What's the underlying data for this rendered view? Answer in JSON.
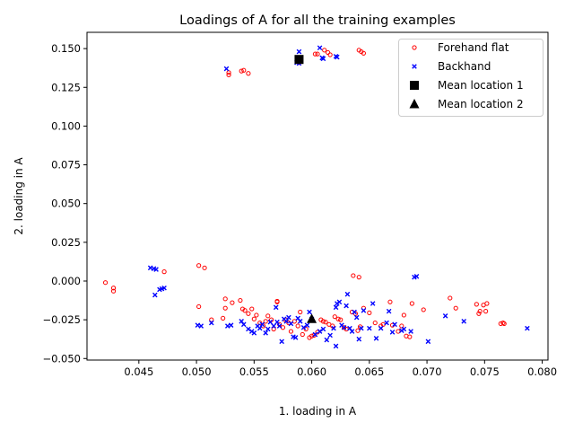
{
  "chart_data": {
    "type": "scatter",
    "title": "Loadings of A for all the training examples",
    "xlabel": "1. loading in A",
    "ylabel": "2. loading in A",
    "xlim": [
      0.0405,
      0.0805
    ],
    "ylim": [
      -0.051,
      0.1605
    ],
    "xticks": [
      0.045,
      0.05,
      0.055,
      0.06,
      0.065,
      0.07,
      0.075,
      0.08
    ],
    "xtick_labels": [
      "0.045",
      "0.050",
      "0.055",
      "0.060",
      "0.065",
      "0.070",
      "0.075",
      "0.080"
    ],
    "yticks": [
      -0.05,
      -0.025,
      0.0,
      0.025,
      0.05,
      0.075,
      0.1,
      0.125,
      0.15
    ],
    "ytick_labels": [
      "−0.050",
      "−0.025",
      "0.000",
      "0.025",
      "0.050",
      "0.075",
      "0.100",
      "0.125",
      "0.150"
    ],
    "grid": false,
    "legend_position": "top-right",
    "series": [
      {
        "name": "Forehand flat",
        "marker": "circle-open",
        "color": "#ff0000",
        "points": [
          [
            0.0421,
            -0.001
          ],
          [
            0.0428,
            -0.0045
          ],
          [
            0.0428,
            -0.0065
          ],
          [
            0.0472,
            0.006
          ],
          [
            0.0502,
            0.01
          ],
          [
            0.0507,
            0.0085
          ],
          [
            0.0502,
            -0.0165
          ],
          [
            0.0513,
            -0.025
          ],
          [
            0.0523,
            -0.024
          ],
          [
            0.0525,
            -0.0115
          ],
          [
            0.0525,
            -0.0175
          ],
          [
            0.0531,
            -0.014
          ],
          [
            0.0538,
            -0.0125
          ],
          [
            0.054,
            -0.018
          ],
          [
            0.0542,
            -0.019
          ],
          [
            0.0545,
            -0.021
          ],
          [
            0.0548,
            -0.018
          ],
          [
            0.055,
            -0.0245
          ],
          [
            0.0552,
            -0.022
          ],
          [
            0.0555,
            -0.027
          ],
          [
            0.0558,
            -0.029
          ],
          [
            0.056,
            -0.026
          ],
          [
            0.0562,
            -0.0225
          ],
          [
            0.0565,
            -0.025
          ],
          [
            0.0567,
            -0.031
          ],
          [
            0.057,
            -0.013
          ],
          [
            0.057,
            -0.0135
          ],
          [
            0.0572,
            -0.028
          ],
          [
            0.0575,
            -0.03
          ],
          [
            0.0577,
            -0.025
          ],
          [
            0.058,
            -0.027
          ],
          [
            0.0582,
            -0.0325
          ],
          [
            0.0585,
            -0.026
          ],
          [
            0.0588,
            -0.029
          ],
          [
            0.059,
            -0.02
          ],
          [
            0.0592,
            -0.0345
          ],
          [
            0.0595,
            -0.031
          ],
          [
            0.0598,
            -0.0365
          ],
          [
            0.06,
            -0.0355
          ],
          [
            0.0602,
            -0.035
          ],
          [
            0.0605,
            -0.033
          ],
          [
            0.0608,
            -0.025
          ],
          [
            0.061,
            -0.026
          ],
          [
            0.0612,
            -0.0265
          ],
          [
            0.0615,
            -0.028
          ],
          [
            0.0618,
            -0.029
          ],
          [
            0.062,
            -0.023
          ],
          [
            0.0623,
            -0.0245
          ],
          [
            0.0625,
            -0.025
          ],
          [
            0.0628,
            -0.03
          ],
          [
            0.063,
            -0.031
          ],
          [
            0.0635,
            -0.02
          ],
          [
            0.0638,
            -0.021
          ],
          [
            0.064,
            -0.032
          ],
          [
            0.0642,
            -0.0295
          ],
          [
            0.0645,
            -0.0175
          ],
          [
            0.0636,
            0.0035
          ],
          [
            0.0641,
            0.0025
          ],
          [
            0.065,
            -0.0205
          ],
          [
            0.0655,
            -0.027
          ],
          [
            0.066,
            -0.029
          ],
          [
            0.0662,
            -0.028
          ],
          [
            0.0668,
            -0.0135
          ],
          [
            0.067,
            -0.0285
          ],
          [
            0.0675,
            -0.0325
          ],
          [
            0.0678,
            -0.029
          ],
          [
            0.068,
            -0.022
          ],
          [
            0.0682,
            -0.0355
          ],
          [
            0.0685,
            -0.036
          ],
          [
            0.0687,
            -0.0145
          ],
          [
            0.0697,
            -0.0185
          ],
          [
            0.072,
            -0.011
          ],
          [
            0.0725,
            -0.0175
          ],
          [
            0.0743,
            -0.015
          ],
          [
            0.0745,
            -0.021
          ],
          [
            0.0746,
            -0.0195
          ],
          [
            0.0749,
            -0.0155
          ],
          [
            0.0751,
            -0.0195
          ],
          [
            0.0752,
            -0.0145
          ],
          [
            0.0764,
            -0.0275
          ],
          [
            0.0766,
            -0.027
          ],
          [
            0.0767,
            -0.0275
          ],
          [
            0.0528,
            0.1345
          ],
          [
            0.0528,
            0.133
          ],
          [
            0.0541,
            0.136
          ],
          [
            0.0539,
            0.1355
          ],
          [
            0.0545,
            0.134
          ],
          [
            0.0603,
            0.1465
          ],
          [
            0.0605,
            0.1465
          ],
          [
            0.0611,
            0.149
          ],
          [
            0.0614,
            0.1475
          ],
          [
            0.0616,
            0.146
          ],
          [
            0.0641,
            0.149
          ],
          [
            0.0643,
            0.148
          ],
          [
            0.0645,
            0.147
          ],
          [
            0.0589,
            0.141
          ]
        ]
      },
      {
        "name": "Backhand",
        "marker": "x",
        "color": "#0000ff",
        "points": [
          [
            0.046,
            0.0085
          ],
          [
            0.0463,
            0.008
          ],
          [
            0.0465,
            0.0075
          ],
          [
            0.0464,
            -0.009
          ],
          [
            0.0468,
            -0.0055
          ],
          [
            0.047,
            -0.005
          ],
          [
            0.0472,
            -0.0045
          ],
          [
            0.0501,
            -0.0285
          ],
          [
            0.0504,
            -0.029
          ],
          [
            0.0513,
            -0.027
          ],
          [
            0.0527,
            -0.029
          ],
          [
            0.053,
            -0.0285
          ],
          [
            0.0539,
            -0.026
          ],
          [
            0.0541,
            -0.028
          ],
          [
            0.0545,
            -0.031
          ],
          [
            0.0548,
            -0.0325
          ],
          [
            0.055,
            -0.0335
          ],
          [
            0.0553,
            -0.029
          ],
          [
            0.0555,
            -0.0305
          ],
          [
            0.0557,
            -0.028
          ],
          [
            0.056,
            -0.0335
          ],
          [
            0.0562,
            -0.031
          ],
          [
            0.0564,
            -0.0265
          ],
          [
            0.0567,
            -0.029
          ],
          [
            0.0569,
            -0.017
          ],
          [
            0.057,
            -0.0265
          ],
          [
            0.0572,
            -0.029
          ],
          [
            0.0574,
            -0.039
          ],
          [
            0.0576,
            -0.0245
          ],
          [
            0.0578,
            -0.026
          ],
          [
            0.058,
            -0.0235
          ],
          [
            0.0582,
            -0.0275
          ],
          [
            0.0584,
            -0.036
          ],
          [
            0.0586,
            -0.0365
          ],
          [
            0.0588,
            -0.024
          ],
          [
            0.059,
            -0.026
          ],
          [
            0.0593,
            -0.03
          ],
          [
            0.0596,
            -0.0285
          ],
          [
            0.0598,
            -0.02
          ],
          [
            0.06,
            -0.0245
          ],
          [
            0.0603,
            -0.0345
          ],
          [
            0.0607,
            -0.0325
          ],
          [
            0.061,
            -0.031
          ],
          [
            0.0613,
            -0.038
          ],
          [
            0.0616,
            -0.035
          ],
          [
            0.0619,
            -0.0305
          ],
          [
            0.0621,
            -0.042
          ],
          [
            0.0621,
            -0.017
          ],
          [
            0.0622,
            -0.0145
          ],
          [
            0.0624,
            -0.0135
          ],
          [
            0.0626,
            -0.0285
          ],
          [
            0.0628,
            -0.03
          ],
          [
            0.063,
            -0.016
          ],
          [
            0.0631,
            -0.0085
          ],
          [
            0.0633,
            -0.0305
          ],
          [
            0.0635,
            -0.0325
          ],
          [
            0.0637,
            -0.02
          ],
          [
            0.0639,
            -0.0235
          ],
          [
            0.0641,
            -0.0375
          ],
          [
            0.0643,
            -0.0305
          ],
          [
            0.0645,
            -0.019
          ],
          [
            0.065,
            -0.0305
          ],
          [
            0.0653,
            -0.0145
          ],
          [
            0.0656,
            -0.037
          ],
          [
            0.066,
            -0.0305
          ],
          [
            0.0665,
            -0.027
          ],
          [
            0.0667,
            -0.0195
          ],
          [
            0.067,
            -0.033
          ],
          [
            0.0672,
            -0.028
          ],
          [
            0.0678,
            -0.032
          ],
          [
            0.068,
            -0.031
          ],
          [
            0.0686,
            -0.0325
          ],
          [
            0.0689,
            0.0025
          ],
          [
            0.0691,
            0.003
          ],
          [
            0.0701,
            -0.039
          ],
          [
            0.0716,
            -0.0225
          ],
          [
            0.0732,
            -0.026
          ],
          [
            0.0787,
            -0.0305
          ],
          [
            0.0526,
            0.137
          ],
          [
            0.0587,
            0.141
          ],
          [
            0.0589,
            0.1405
          ],
          [
            0.0589,
            0.148
          ],
          [
            0.0607,
            0.1505
          ],
          [
            0.0609,
            0.144
          ],
          [
            0.061,
            0.1435
          ],
          [
            0.0621,
            0.145
          ],
          [
            0.0622,
            0.1445
          ]
        ]
      },
      {
        "name": "Mean location 1",
        "marker": "square",
        "color": "#000000",
        "points": [
          [
            0.0589,
            0.143
          ]
        ]
      },
      {
        "name": "Mean location 2",
        "marker": "triangle",
        "color": "#000000",
        "points": [
          [
            0.06,
            -0.0245
          ]
        ]
      }
    ]
  }
}
